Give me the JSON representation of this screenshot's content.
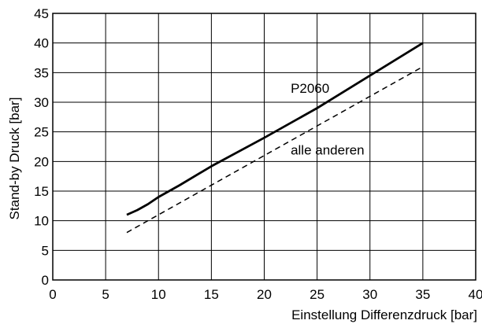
{
  "chart_data": {
    "type": "line",
    "xlabel": "Einstellung Differenzdruck [bar]",
    "ylabel": "Stand-by Druck [bar]",
    "xlim": [
      0,
      40
    ],
    "ylim": [
      0,
      45
    ],
    "xticks": [
      0,
      5,
      10,
      15,
      20,
      25,
      30,
      35,
      40
    ],
    "yticks": [
      0,
      5,
      10,
      15,
      20,
      25,
      30,
      35,
      40,
      45
    ],
    "grid": true,
    "series": [
      {
        "name": "P2060",
        "style": "solid",
        "x": [
          7,
          8,
          9,
          10,
          12,
          15,
          20,
          25,
          30,
          35
        ],
        "y": [
          11,
          11.8,
          12.8,
          14,
          16,
          19.2,
          24,
          29,
          34.5,
          40
        ]
      },
      {
        "name": "alle anderen",
        "style": "dashed",
        "x": [
          7,
          35
        ],
        "y": [
          8,
          36
        ]
      }
    ],
    "annotations": [
      {
        "text": "P2060",
        "x": 22.5,
        "y": 31.6
      },
      {
        "text": "alle anderen",
        "x": 22.5,
        "y": 21.2
      }
    ]
  }
}
